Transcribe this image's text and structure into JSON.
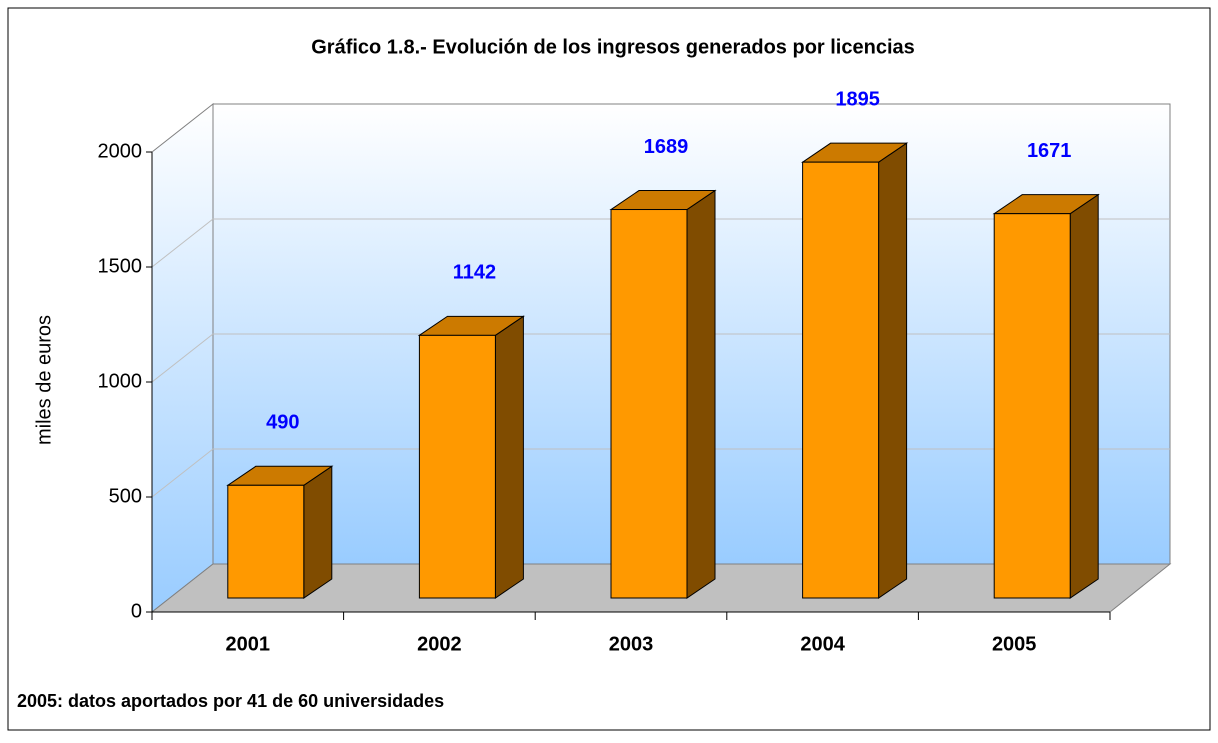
{
  "chart_data": {
    "type": "bar",
    "title": "Gráfico 1.8.- Evolución de los ingresos generados por licencias",
    "y_label": "miles de euros",
    "note": "2005: datos aportados por 41 de 60 universidades",
    "categories": [
      "2001",
      "2002",
      "2003",
      "2004",
      "2005"
    ],
    "values": [
      490,
      1142,
      1689,
      1895,
      1671
    ],
    "color": "#ff9900",
    "value_label_color": "#0000ff",
    "ylim": [
      0,
      2000
    ],
    "yticks": [
      0,
      500,
      1000,
      1500,
      2000
    ],
    "grid": true
  }
}
